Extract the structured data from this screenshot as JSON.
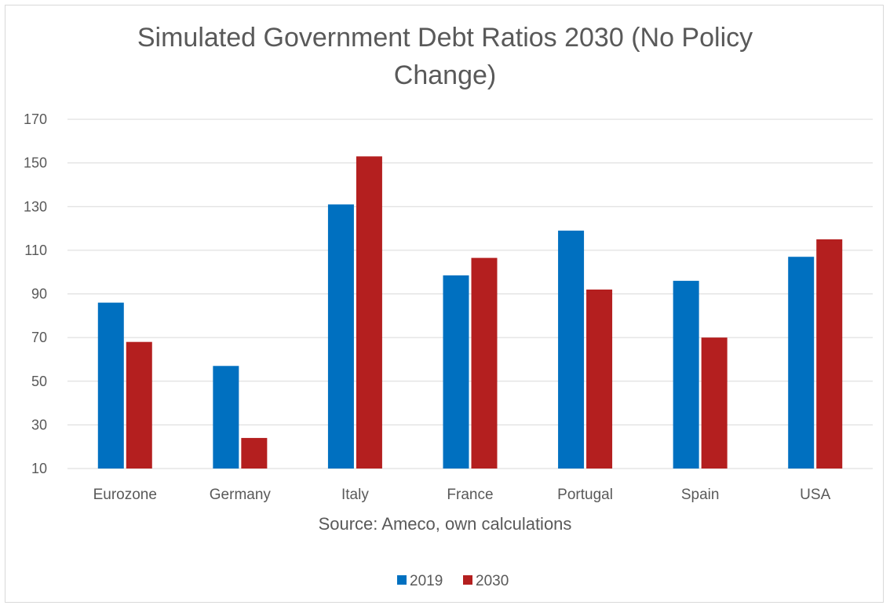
{
  "chart_data": {
    "type": "bar",
    "title": "Simulated Government Debt Ratios 2030 (No Policy Change)",
    "title_lines": [
      "Simulated Government Debt Ratios 2030 (No Policy",
      "Change)"
    ],
    "xlabel": "Source: Ameco, own calculations",
    "ylabel": "",
    "categories": [
      "Eurozone",
      "Germany",
      "Italy",
      "France",
      "Portugal",
      "Spain",
      "USA"
    ],
    "series": [
      {
        "name": "2019",
        "color": "#0070c0",
        "values": [
          86,
          57,
          131,
          98.5,
          119,
          96,
          107
        ]
      },
      {
        "name": "2030",
        "color": "#b41f1f",
        "values": [
          68,
          24,
          153,
          106.5,
          92,
          70,
          115
        ]
      }
    ],
    "ylim": [
      10,
      170
    ],
    "yticks": [
      10,
      30,
      50,
      70,
      90,
      110,
      130,
      150,
      170
    ],
    "grid": true,
    "legend_position": "bottom"
  }
}
